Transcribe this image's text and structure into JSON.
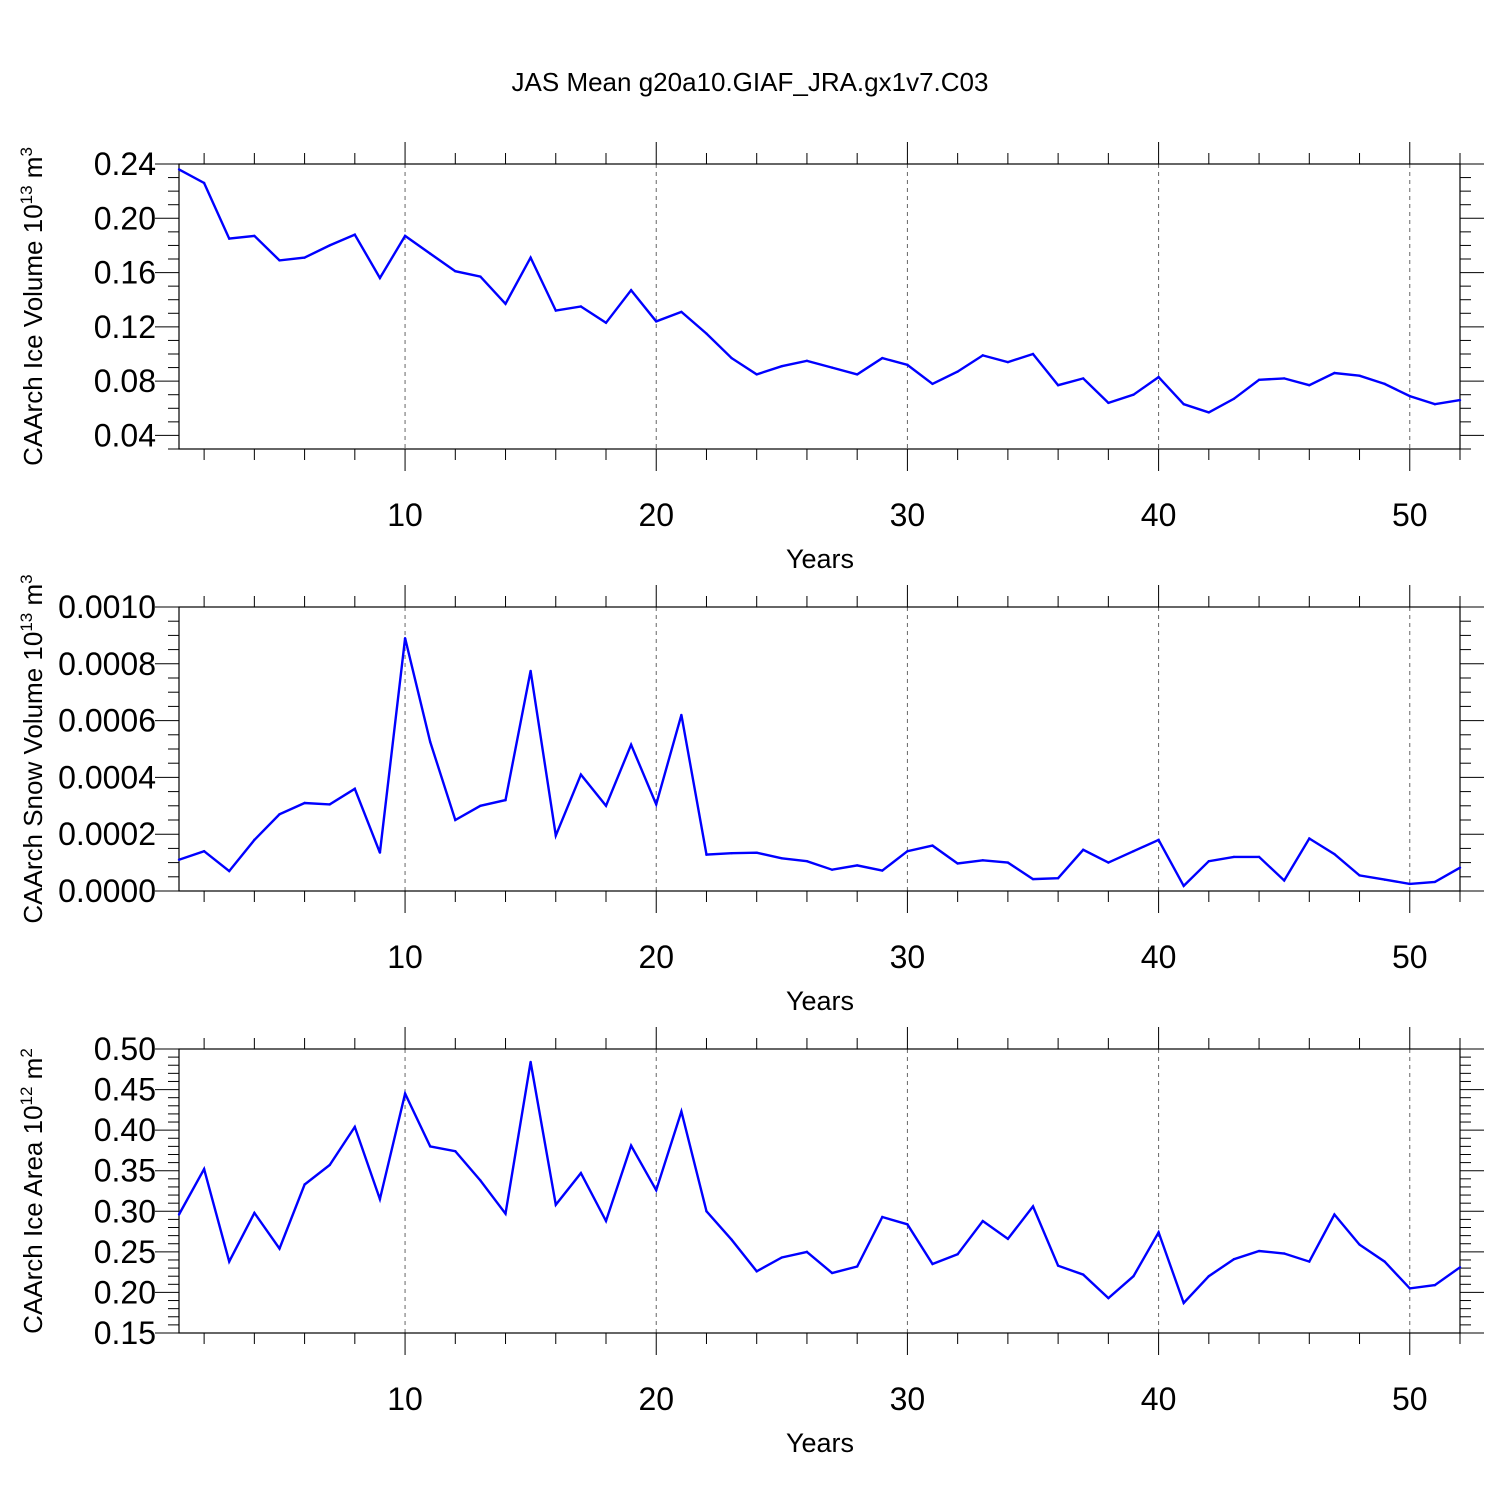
{
  "title": "JAS Mean g20a10.GIAF_JRA.gx1v7.C03",
  "line_color": "#0000ff",
  "chart_data": [
    {
      "type": "line",
      "ylabel": "CAArch Ice Volume 10",
      "ylabel_sup": "13",
      "ylabel_unit": " m",
      "ylabel_unit_sup": "3",
      "xlabel": "Years",
      "xlim": [
        1,
        52
      ],
      "ylim": [
        0.03,
        0.24
      ],
      "x_ticks": [
        10,
        20,
        30,
        40,
        50
      ],
      "y_ticks": [
        "0.24",
        "0.20",
        "0.16",
        "0.12",
        "0.08",
        "0.04"
      ],
      "grid": "vertical dashed at x ticks",
      "x": [
        1,
        2,
        3,
        4,
        5,
        6,
        7,
        8,
        9,
        10,
        11,
        12,
        13,
        14,
        15,
        16,
        17,
        18,
        19,
        20,
        21,
        22,
        23,
        24,
        25,
        26,
        27,
        28,
        29,
        30,
        31,
        32,
        33,
        34,
        35,
        36,
        37,
        38,
        39,
        40,
        41,
        42,
        43,
        44,
        45,
        46,
        47,
        48,
        49,
        50,
        51,
        52
      ],
      "values": [
        0.236,
        0.226,
        0.185,
        0.187,
        0.169,
        0.171,
        0.18,
        0.188,
        0.156,
        0.187,
        0.174,
        0.161,
        0.157,
        0.137,
        0.171,
        0.132,
        0.135,
        0.123,
        0.147,
        0.124,
        0.131,
        0.115,
        0.097,
        0.085,
        0.091,
        0.095,
        0.09,
        0.085,
        0.097,
        0.092,
        0.078,
        0.087,
        0.099,
        0.094,
        0.1,
        0.077,
        0.082,
        0.064,
        0.07,
        0.083,
        0.063,
        0.057,
        0.067,
        0.081,
        0.082,
        0.077,
        0.086,
        0.084,
        0.078,
        0.069,
        0.063,
        0.066
      ]
    },
    {
      "type": "line",
      "ylabel": "CAArch Snow Volume 10",
      "ylabel_sup": "13",
      "ylabel_unit": " m",
      "ylabel_unit_sup": "3",
      "xlabel": "Years",
      "xlim": [
        1,
        52
      ],
      "ylim": [
        0.0,
        0.001
      ],
      "x_ticks": [
        10,
        20,
        30,
        40,
        50
      ],
      "y_ticks": [
        "0.0010",
        "0.0008",
        "0.0006",
        "0.0004",
        "0.0002",
        "0.0000"
      ],
      "grid": "vertical dashed at x ticks",
      "x": [
        1,
        2,
        3,
        4,
        5,
        6,
        7,
        8,
        9,
        10,
        11,
        12,
        13,
        14,
        15,
        16,
        17,
        18,
        19,
        20,
        21,
        22,
        23,
        24,
        25,
        26,
        27,
        28,
        29,
        30,
        31,
        32,
        33,
        34,
        35,
        36,
        37,
        38,
        39,
        40,
        41,
        42,
        43,
        44,
        45,
        46,
        47,
        48,
        49,
        50,
        51,
        52
      ],
      "values": [
        0.00011,
        0.00014,
        7e-05,
        0.00018,
        0.00027,
        0.00031,
        0.000305,
        0.00036,
        0.000135,
        0.00089,
        0.000525,
        0.00025,
        0.0003,
        0.00032,
        0.000775,
        0.000195,
        0.00041,
        0.0003,
        0.000515,
        0.000305,
        0.00062,
        0.000128,
        0.000133,
        0.000135,
        0.000115,
        0.000105,
        7.5e-05,
        9e-05,
        7.2e-05,
        0.00014,
        0.00016,
        9.7e-05,
        0.000108,
        0.0001,
        4.2e-05,
        4.5e-05,
        0.000145,
        0.0001,
        0.00014,
        0.00018,
        1.8e-05,
        0.000105,
        0.00012,
        0.00012,
        3.7e-05,
        0.000185,
        0.00013,
        5.5e-05,
        4e-05,
        2.5e-05,
        3.2e-05,
        8.2e-05
      ]
    },
    {
      "type": "line",
      "ylabel": "CAArch Ice Area 10",
      "ylabel_sup": "12",
      "ylabel_unit": " m",
      "ylabel_unit_sup": "2",
      "xlabel": "Years",
      "xlim": [
        1,
        52
      ],
      "ylim": [
        0.15,
        0.5
      ],
      "x_ticks": [
        10,
        20,
        30,
        40,
        50
      ],
      "y_ticks": [
        "0.50",
        "0.45",
        "0.40",
        "0.35",
        "0.30",
        "0.25",
        "0.20",
        "0.15"
      ],
      "grid": "vertical dashed at x ticks",
      "x": [
        1,
        2,
        3,
        4,
        5,
        6,
        7,
        8,
        9,
        10,
        11,
        12,
        13,
        14,
        15,
        16,
        17,
        18,
        19,
        20,
        21,
        22,
        23,
        24,
        25,
        26,
        27,
        28,
        29,
        30,
        31,
        32,
        33,
        34,
        35,
        36,
        37,
        38,
        39,
        40,
        41,
        42,
        43,
        44,
        45,
        46,
        47,
        48,
        49,
        50,
        51,
        52
      ],
      "values": [
        0.296,
        0.352,
        0.238,
        0.298,
        0.254,
        0.333,
        0.357,
        0.404,
        0.315,
        0.445,
        0.38,
        0.374,
        0.338,
        0.297,
        0.484,
        0.308,
        0.347,
        0.288,
        0.381,
        0.326,
        0.423,
        0.3,
        0.265,
        0.226,
        0.243,
        0.25,
        0.224,
        0.232,
        0.293,
        0.284,
        0.235,
        0.247,
        0.288,
        0.266,
        0.306,
        0.233,
        0.222,
        0.193,
        0.22,
        0.274,
        0.187,
        0.22,
        0.241,
        0.251,
        0.248,
        0.238,
        0.296,
        0.259,
        0.238,
        0.205,
        0.209,
        0.231
      ]
    }
  ]
}
